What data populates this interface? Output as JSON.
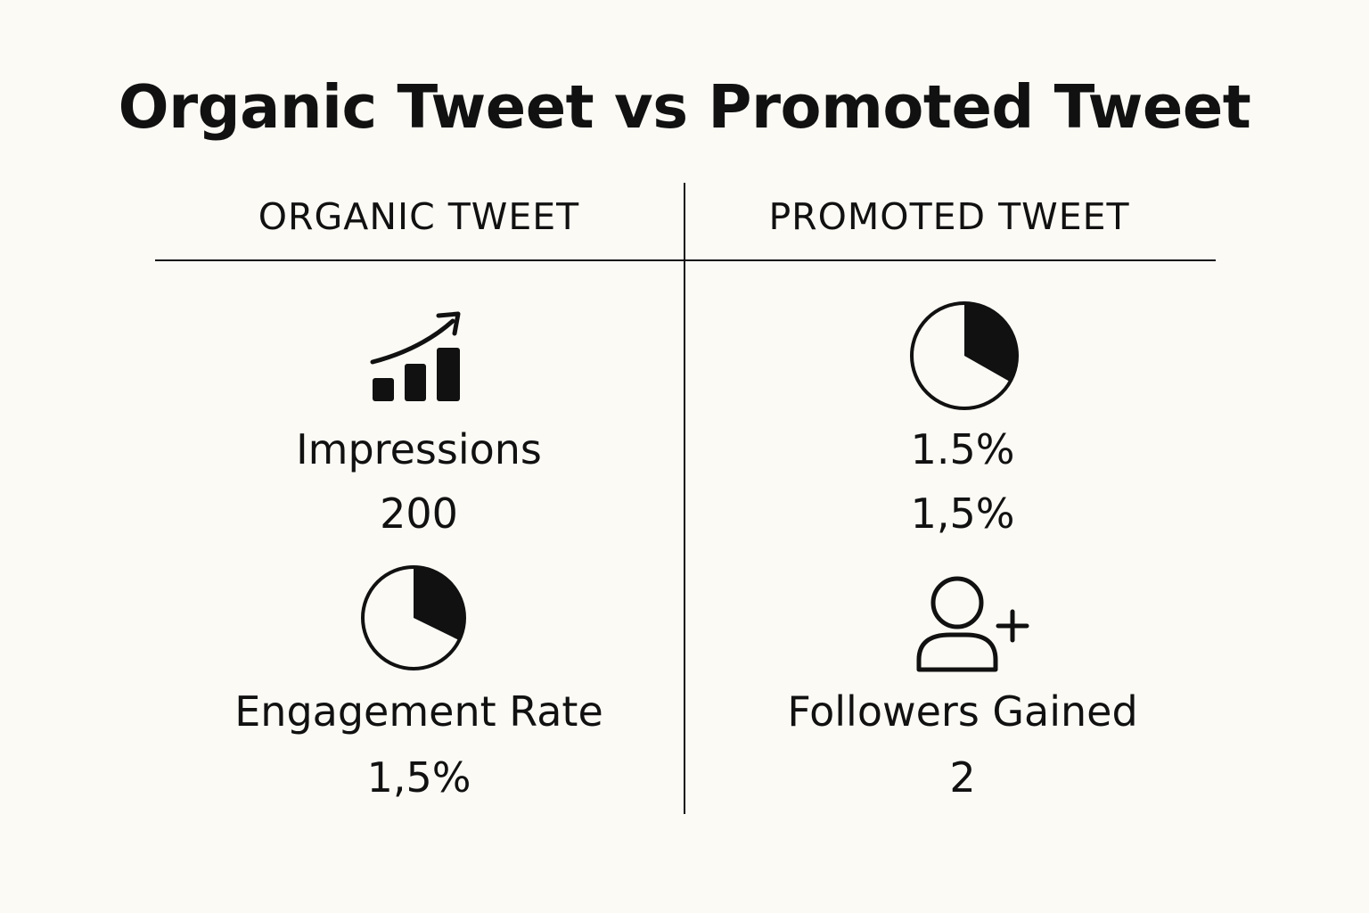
{
  "title": "Organic Tweet vs Promoted Tweet",
  "columns": {
    "organic": {
      "header": "ORGANIC TWEET",
      "metrics": [
        {
          "icon": "bar-chart-growth-icon",
          "label": "Impressions",
          "value": "200"
        },
        {
          "icon": "pie-chart-icon",
          "label": "Engagement Rate",
          "value": "1,5%"
        }
      ]
    },
    "promoted": {
      "header": "PROMOTED TWEET",
      "metrics": [
        {
          "icon": "pie-chart-icon",
          "label": "1.5%",
          "value": "1,5%"
        },
        {
          "icon": "add-user-icon",
          "label": "Followers Gained",
          "value": "2"
        }
      ]
    }
  },
  "colors": {
    "background": "#fbfaf5",
    "ink": "#111111"
  }
}
